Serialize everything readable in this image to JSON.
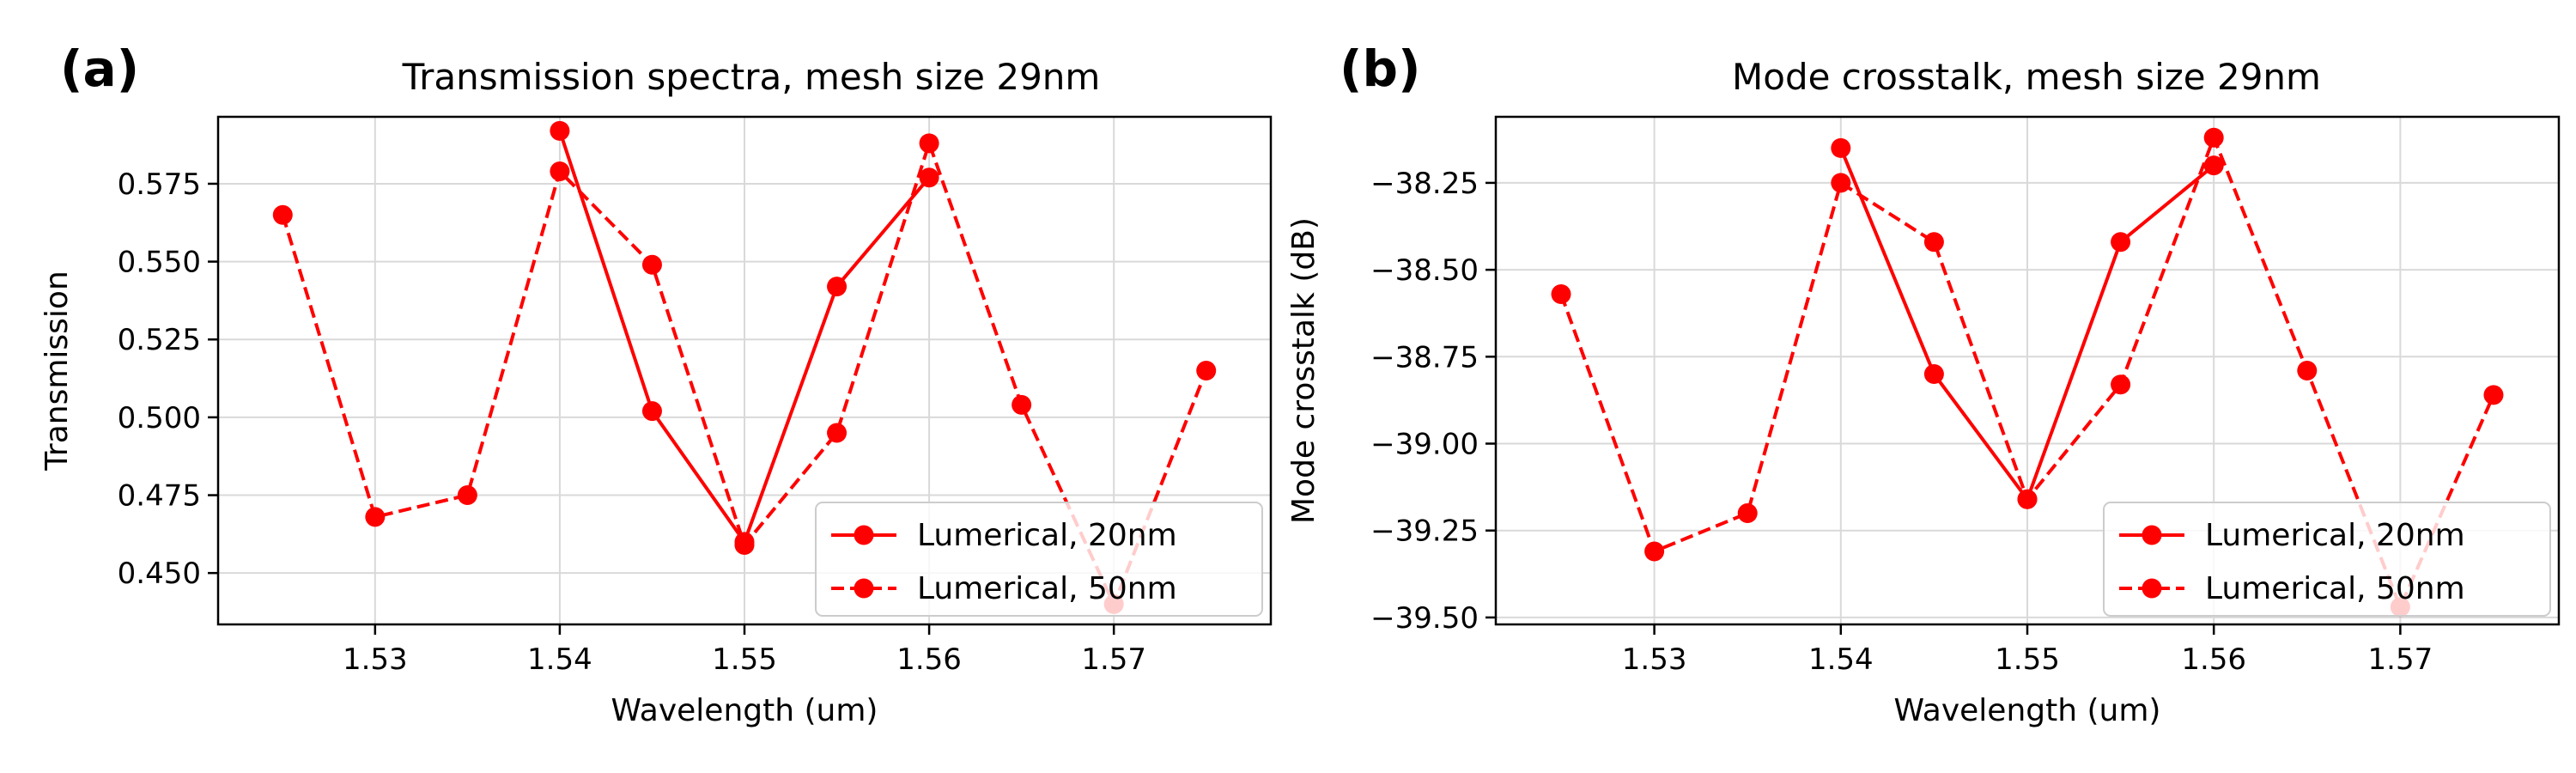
{
  "chart_data": [
    {
      "type": "line",
      "panel": "(a)",
      "title": "Transmission spectra, mesh size 29nm",
      "xlabel": "Wavelength (um)",
      "ylabel": "Transmission",
      "xlim": [
        1.5215,
        1.5785
      ],
      "ylim": [
        0.4335,
        0.5965
      ],
      "xticks": [
        1.53,
        1.54,
        1.55,
        1.56,
        1.57
      ],
      "xtick_labels": [
        "1.53",
        "1.54",
        "1.55",
        "1.56",
        "1.57"
      ],
      "yticks": [
        0.45,
        0.475,
        0.5,
        0.525,
        0.55,
        0.575
      ],
      "ytick_labels": [
        "0.450",
        "0.475",
        "0.500",
        "0.525",
        "0.550",
        "0.575"
      ],
      "grid": true,
      "legend_position": "lower-right",
      "series": [
        {
          "name": "Lumerical, 20nm",
          "style": "solid",
          "color": "#ff0000",
          "x": [
            1.54,
            1.545,
            1.55,
            1.555,
            1.56
          ],
          "y": [
            0.592,
            0.502,
            0.46,
            0.542,
            0.577
          ]
        },
        {
          "name": "Lumerical, 50nm",
          "style": "dashed",
          "color": "#ff0000",
          "x": [
            1.525,
            1.53,
            1.535,
            1.54,
            1.545,
            1.55,
            1.555,
            1.56,
            1.565,
            1.57,
            1.575
          ],
          "y": [
            0.565,
            0.468,
            0.475,
            0.579,
            0.549,
            0.459,
            0.495,
            0.588,
            0.504,
            0.44,
            0.515
          ]
        }
      ]
    },
    {
      "type": "line",
      "panel": "(b)",
      "title": "Mode crosstalk, mesh size 29nm",
      "xlabel": "Wavelength (um)",
      "ylabel": "Mode crosstalk (dB)",
      "xlim": [
        1.5215,
        1.5785
      ],
      "ylim": [
        -39.52,
        -38.06
      ],
      "xticks": [
        1.53,
        1.54,
        1.55,
        1.56,
        1.57
      ],
      "xtick_labels": [
        "1.53",
        "1.54",
        "1.55",
        "1.56",
        "1.57"
      ],
      "yticks": [
        -39.5,
        -39.25,
        -39.0,
        -38.75,
        -38.5,
        -38.25
      ],
      "ytick_labels": [
        "−39.50",
        "−39.25",
        "−39.00",
        "−38.75",
        "−38.50",
        "−38.25"
      ],
      "grid": true,
      "legend_position": "lower-right",
      "series": [
        {
          "name": "Lumerical, 20nm",
          "style": "solid",
          "color": "#ff0000",
          "x": [
            1.54,
            1.545,
            1.55,
            1.555,
            1.56
          ],
          "y": [
            -38.15,
            -38.8,
            -39.16,
            -38.42,
            -38.2
          ]
        },
        {
          "name": "Lumerical, 50nm",
          "style": "dashed",
          "color": "#ff0000",
          "x": [
            1.525,
            1.53,
            1.535,
            1.54,
            1.545,
            1.55,
            1.555,
            1.56,
            1.565,
            1.57,
            1.575
          ],
          "y": [
            -38.57,
            -39.31,
            -39.2,
            -38.25,
            -38.42,
            -39.16,
            -38.83,
            -38.12,
            -38.79,
            -39.47,
            -38.86
          ]
        }
      ]
    }
  ]
}
